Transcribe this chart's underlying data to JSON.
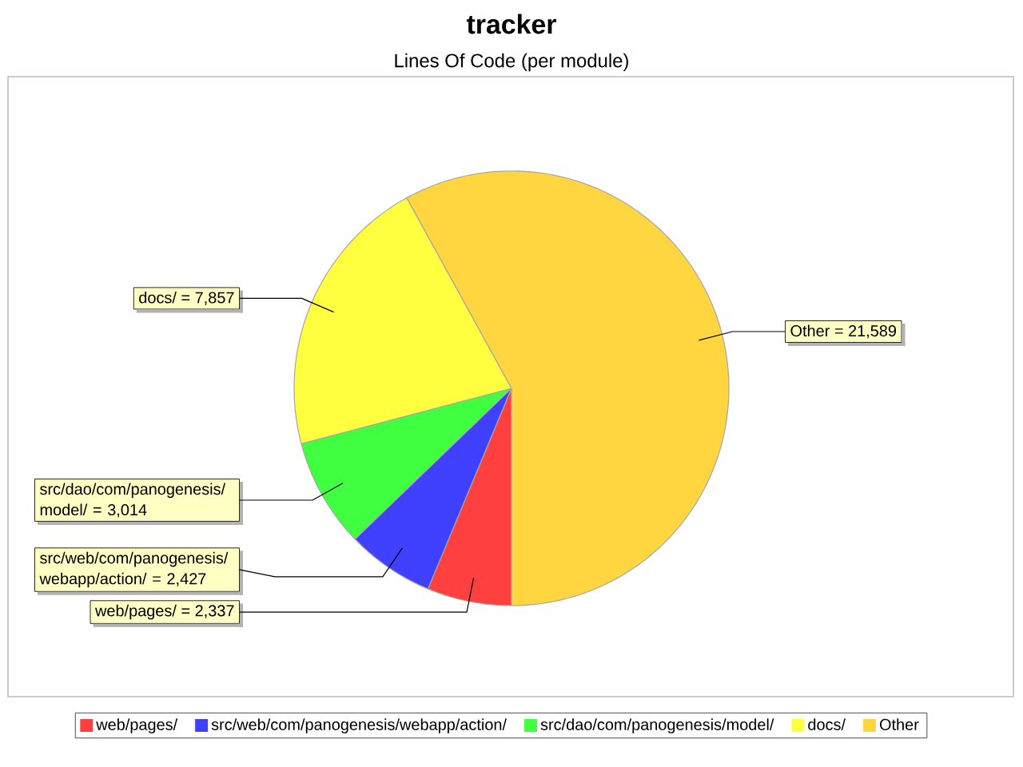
{
  "chart_data": {
    "type": "pie",
    "title": "tracker",
    "subtitle": "Lines Of Code (per module)",
    "categories": [
      "web/pages/",
      "src/web/com/panogenesis/webapp/action/",
      "src/dao/com/panogenesis/model/",
      "docs/",
      "Other"
    ],
    "values": [
      2337,
      2427,
      3014,
      7857,
      21589
    ],
    "value_labels": [
      "= 2,337",
      "= 2,427",
      "= 3,014",
      "= 7,857",
      "= 21,589"
    ],
    "colors": [
      "#ff4040",
      "#4040ff",
      "#40ff40",
      "#ffff40",
      "#ffd540"
    ],
    "legend": "bottom"
  }
}
